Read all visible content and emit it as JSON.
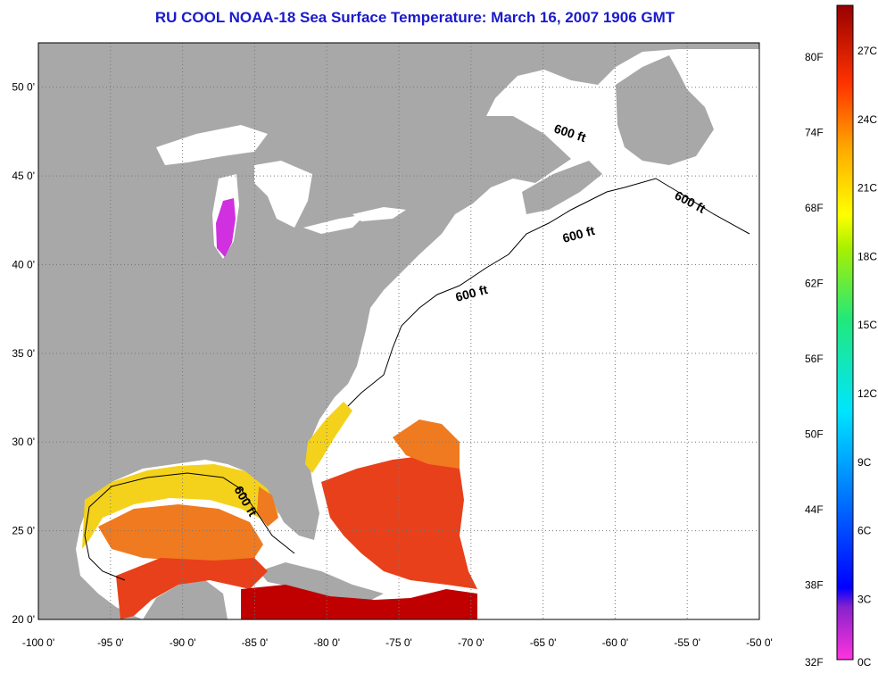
{
  "title": "RU COOL  NOAA-18  Sea Surface Temperature:  March 16, 2007 1906 GMT",
  "map": {
    "lon_range": [
      -100,
      -50
    ],
    "lat_range": [
      20,
      52.5
    ],
    "lon_ticks": [
      {
        "value": -100,
        "label": "-100 0'"
      },
      {
        "value": -95,
        "label": "-95 0'"
      },
      {
        "value": -90,
        "label": "-90 0'"
      },
      {
        "value": -85,
        "label": "-85 0'"
      },
      {
        "value": -80,
        "label": "-80 0'"
      },
      {
        "value": -75,
        "label": "-75 0'"
      },
      {
        "value": -70,
        "label": "-70 0'"
      },
      {
        "value": -65,
        "label": "-65 0'"
      },
      {
        "value": -60,
        "label": "-60 0'"
      },
      {
        "value": -55,
        "label": "-55 0'"
      },
      {
        "value": -50,
        "label": "-50 0'"
      }
    ],
    "lat_ticks": [
      {
        "value": 50,
        "label": "50 0'"
      },
      {
        "value": 45,
        "label": "45 0'"
      },
      {
        "value": 40,
        "label": "40 0'"
      },
      {
        "value": 35,
        "label": "35 0'"
      },
      {
        "value": 30,
        "label": "30 0'"
      },
      {
        "value": 25,
        "label": "25 0'"
      },
      {
        "value": 20,
        "label": "20 0'"
      }
    ],
    "contour_labels": [
      "600 ft",
      "600 ft",
      "600 ft",
      "600 ft",
      "600 ft"
    ],
    "colors": {
      "land": "#a8a8a8",
      "ocean_no_data": "#ffffff",
      "warm": "#e8401a",
      "hot": "#c00000",
      "mid": "#f07a20",
      "shelf": "#f4d21c",
      "cold_lake": "#d030e0"
    }
  },
  "colorbar": {
    "fahrenheit": [
      "80F",
      "74F",
      "68F",
      "62F",
      "56F",
      "50F",
      "44F",
      "38F",
      "32F"
    ],
    "celsius": [
      "27C",
      "24C",
      "21C",
      "18C",
      "15C",
      "12C",
      "9C",
      "6C",
      "3C",
      "0C"
    ],
    "range_c": [
      0,
      28.5
    ]
  }
}
